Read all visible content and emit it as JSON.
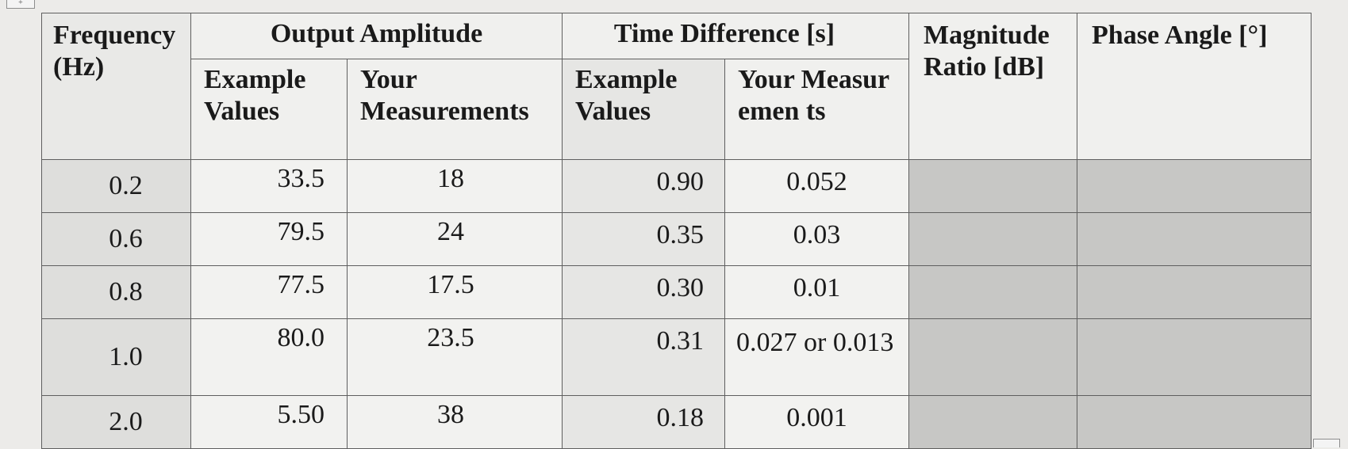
{
  "table": {
    "headers": {
      "frequency": "Frequency (Hz)",
      "output_amplitude": "Output Amplitude",
      "time_difference": "Time Difference [s]",
      "magnitude_ratio": "Magnitude Ratio [dB]",
      "phase_angle": "Phase Angle [°]",
      "amp_example": "Example Values",
      "amp_yours": "Your Measurements",
      "time_example": "Example Values",
      "time_yours": "Your Measuremen ts"
    },
    "rows": [
      {
        "frequency": "0.2",
        "amp_example": "33.5",
        "amp_yours": "18",
        "time_example": "0.90",
        "time_yours": "0.052"
      },
      {
        "frequency": "0.6",
        "amp_example": "79.5",
        "amp_yours": "24",
        "time_example": "0.35",
        "time_yours": "0.03"
      },
      {
        "frequency": "0.8",
        "amp_example": "77.5",
        "amp_yours": "17.5",
        "time_example": "0.30",
        "time_yours": "0.01"
      },
      {
        "frequency": "1.0",
        "amp_example": "80.0",
        "amp_yours": "23.5",
        "time_example": "0.31",
        "time_yours": "0.027 or 0.013"
      },
      {
        "frequency": "2.0",
        "amp_example": "5.50",
        "amp_yours": "38",
        "time_example": "0.18",
        "time_yours": "0.001"
      }
    ]
  }
}
